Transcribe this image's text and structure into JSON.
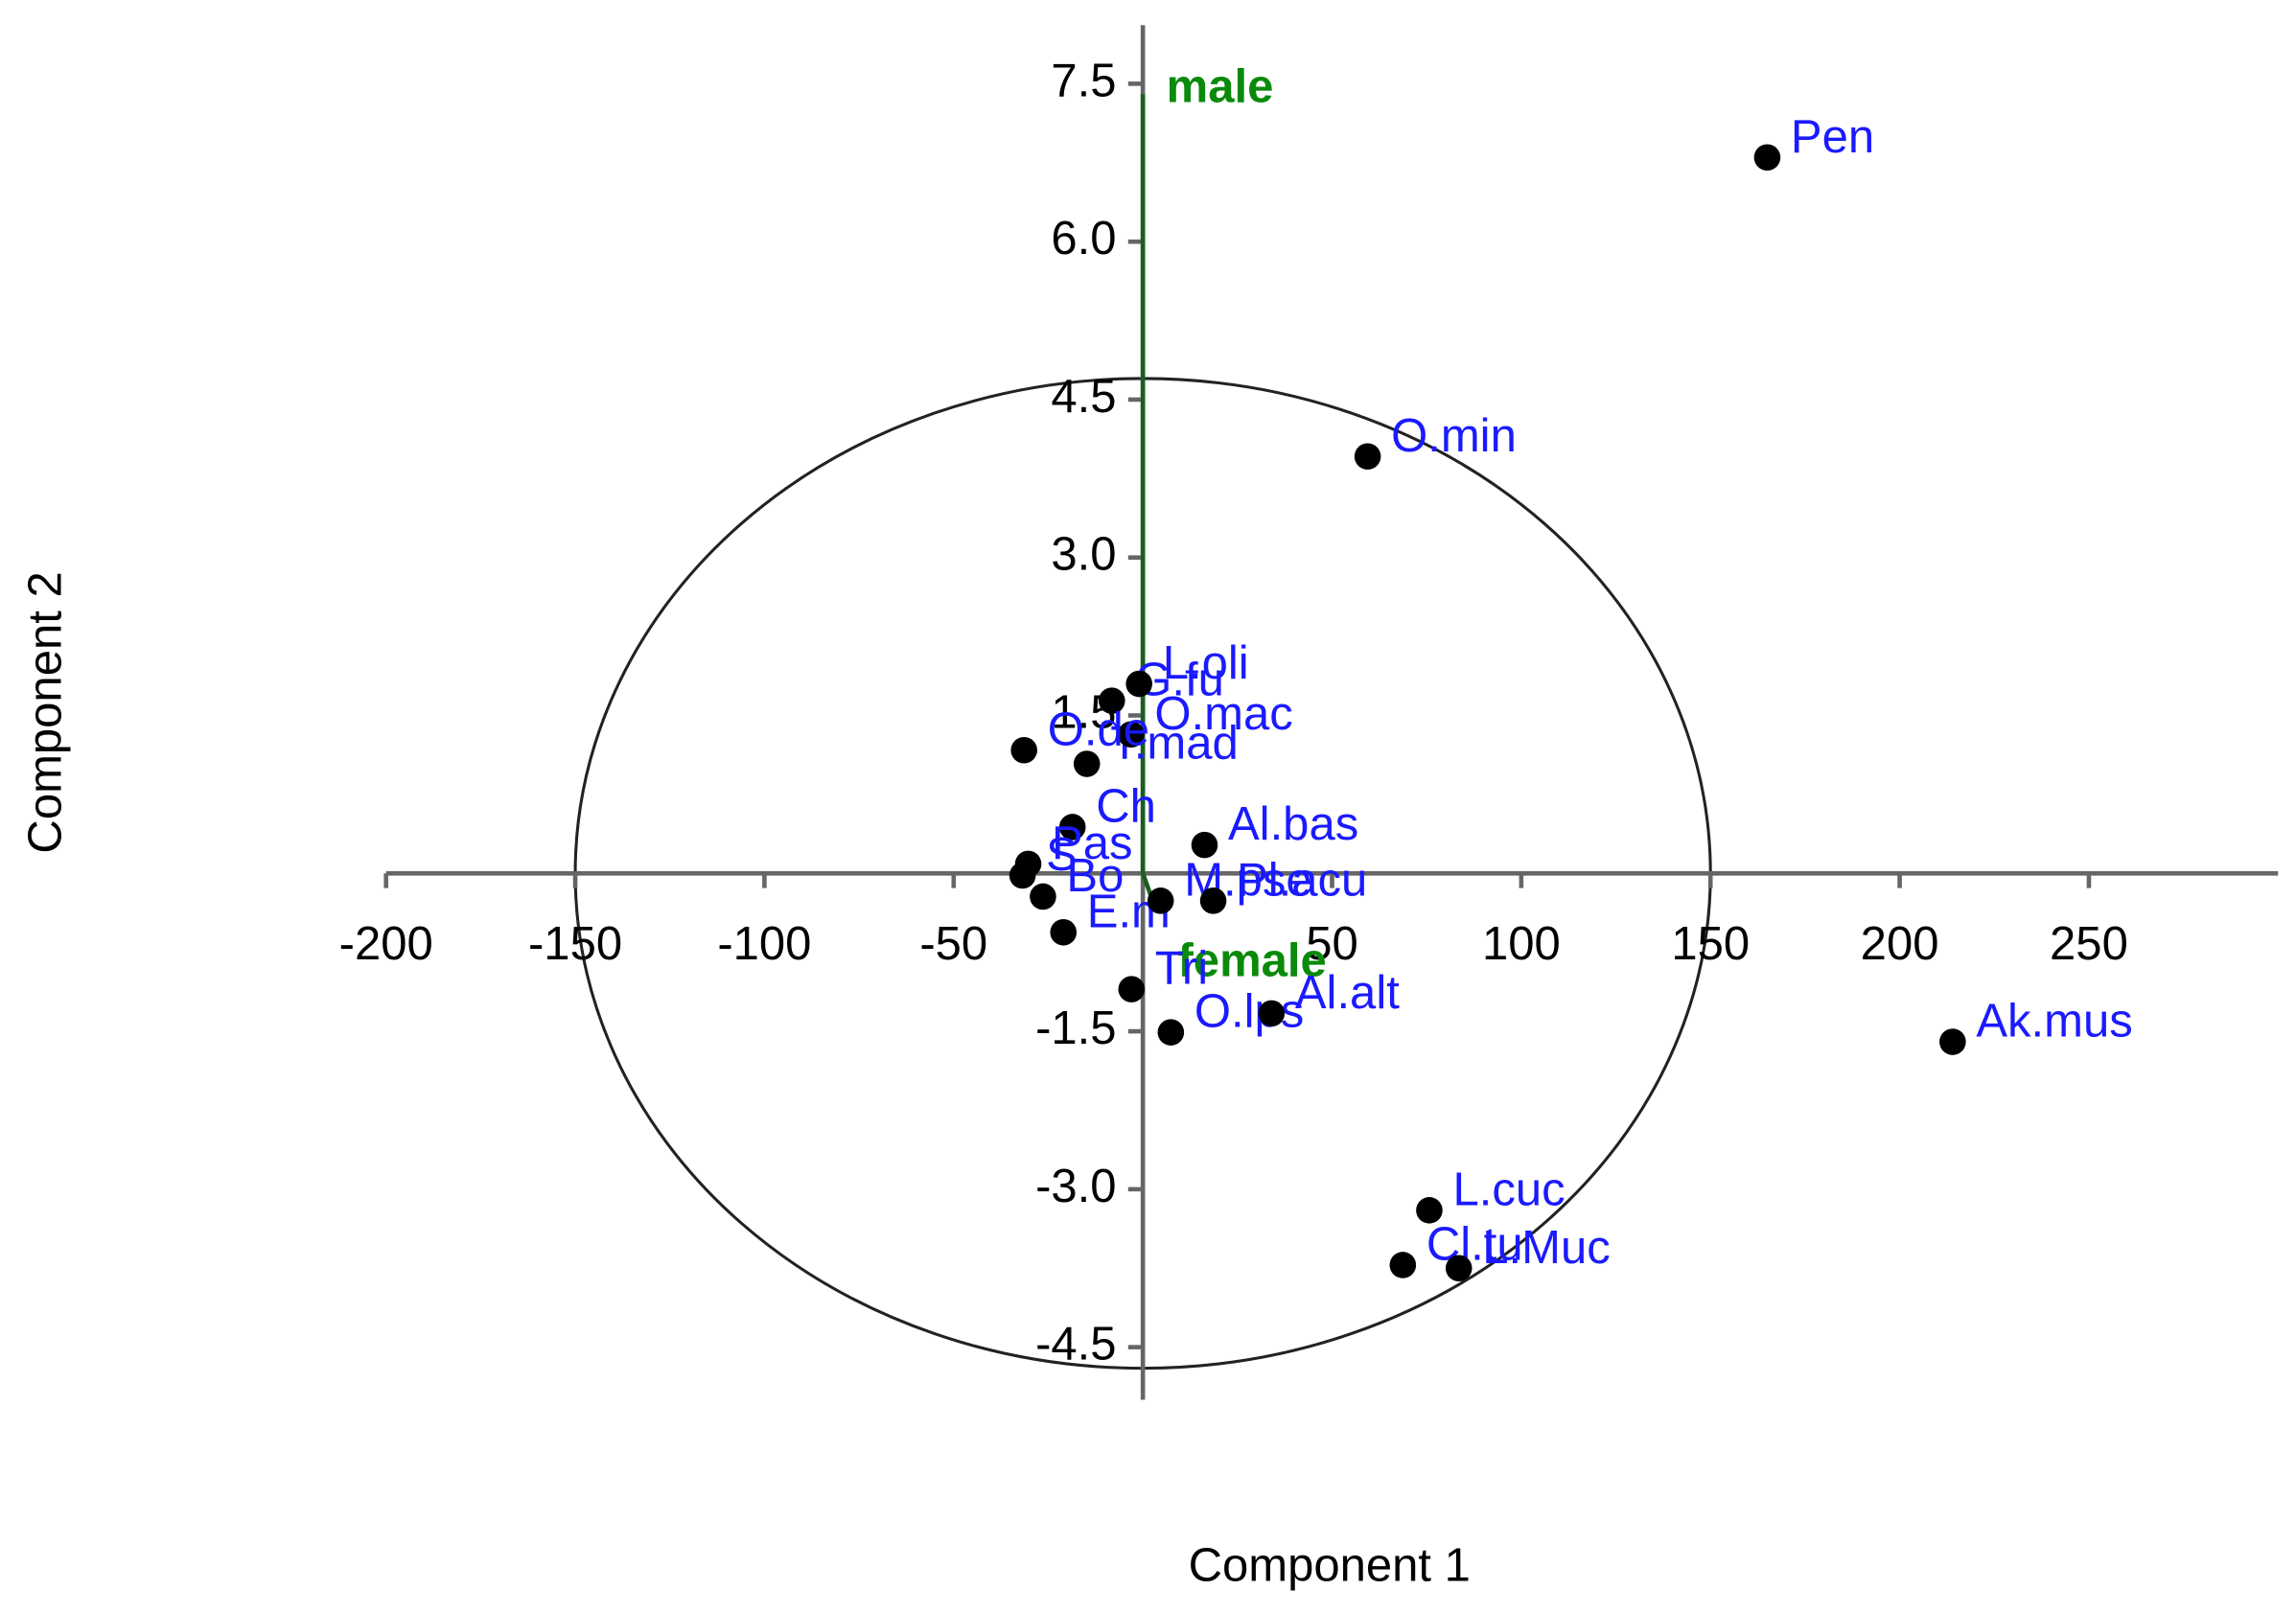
{
  "chart_data": {
    "type": "scatter",
    "x_label": "Component 1",
    "y_label": "Component 2",
    "xlim": [
      -200,
      300
    ],
    "ylim": [
      -5,
      8
    ],
    "xticks": [
      -200,
      -150,
      -100,
      -50,
      50,
      100,
      150,
      200,
      250
    ],
    "yticks": [
      7.5,
      {
        "value": 6,
        "label": "6.0"
      },
      4.5,
      {
        "value": 3,
        "label": "3.0"
      },
      1.5,
      -1.5,
      {
        "value": -3,
        "label": "-3.0"
      },
      -4.5
    ],
    "point_color": "#000000",
    "label_color": "#1a1aff",
    "ellipse": {
      "rx": 150,
      "ry": 4.7
    },
    "points": {
      "labels": [
        "Pen",
        "O.min",
        "Ak.mus",
        "L.cuc",
        "Cl.tu",
        "L.Muc",
        "O.lps",
        "Al.alt",
        "G.fu",
        "L.oli",
        "T.mad",
        "O.mac",
        "O.de",
        "Ch",
        "Pas",
        "S",
        "Bo",
        "E.m",
        "M.pse",
        "Pl.acu",
        "Al.bas",
        "Tri"
      ],
      "x": [
        165,
        59.4,
        214,
        75.7,
        68.7,
        83.5,
        7.4,
        34,
        -8.2,
        -1,
        -14.8,
        -3.1,
        -31.4,
        -18.6,
        -30.3,
        -31.8,
        -26.4,
        -21,
        4.7,
        18.6,
        16.3,
        -3
      ],
      "y": [
        6.8,
        3.96,
        -1.6,
        -3.2,
        -3.72,
        -3.75,
        -1.51,
        -1.33,
        1.64,
        1.8,
        1.04,
        1.32,
        1.17,
        0.44,
        0.09,
        -0.02,
        -0.22,
        -0.56,
        -0.26,
        -0.26,
        0.27,
        -1.1
      ]
    },
    "vectors": {
      "color": "#1b5e20",
      "label_color": "#0a8a0a",
      "names": [
        "male",
        "female"
      ],
      "x": [
        0,
        3
      ],
      "y": [
        7.4,
        -0.3
      ]
    }
  }
}
